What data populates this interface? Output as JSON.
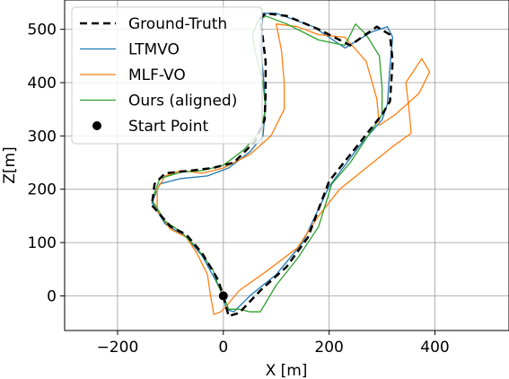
{
  "chart_data": {
    "type": "line",
    "xlabel": "X [m]",
    "ylabel": "Z[m]",
    "xlim": [
      -300,
      540
    ],
    "ylim": [
      -65,
      555
    ],
    "xticks": [
      -200,
      0,
      200,
      400
    ],
    "yticks": [
      0,
      100,
      200,
      300,
      400,
      500
    ],
    "xtick_labels": [
      "−200",
      "0",
      "200",
      "400"
    ],
    "ytick_labels": [
      "0",
      "100",
      "200",
      "300",
      "400",
      "500"
    ],
    "grid": true,
    "legend_position": "top-left",
    "series": [
      {
        "name": "Ground-Truth",
        "color": "#000000",
        "dashed": true,
        "points": [
          [
            0,
            0
          ],
          [
            10,
            -38
          ],
          [
            30,
            -32
          ],
          [
            70,
            10
          ],
          [
            120,
            55
          ],
          [
            160,
            110
          ],
          [
            200,
            215
          ],
          [
            260,
            290
          ],
          [
            300,
            340
          ],
          [
            315,
            365
          ],
          [
            320,
            440
          ],
          [
            315,
            490
          ],
          [
            290,
            505
          ],
          [
            240,
            470
          ],
          [
            180,
            500
          ],
          [
            120,
            525
          ],
          [
            80,
            530
          ],
          [
            70,
            520
          ],
          [
            75,
            480
          ],
          [
            80,
            440
          ],
          [
            80,
            380
          ],
          [
            78,
            330
          ],
          [
            60,
            290
          ],
          [
            20,
            250
          ],
          [
            -20,
            240
          ],
          [
            -60,
            235
          ],
          [
            -110,
            230
          ],
          [
            -130,
            210
          ],
          [
            -135,
            170
          ],
          [
            -100,
            130
          ],
          [
            -70,
            115
          ],
          [
            -40,
            80
          ],
          [
            -10,
            30
          ],
          [
            0,
            0
          ]
        ]
      },
      {
        "name": "LTMVO",
        "color": "#1f77b4",
        "dashed": false,
        "points": [
          [
            0,
            0
          ],
          [
            5,
            -25
          ],
          [
            20,
            -30
          ],
          [
            50,
            0
          ],
          [
            100,
            40
          ],
          [
            150,
            100
          ],
          [
            200,
            205
          ],
          [
            260,
            285
          ],
          [
            300,
            330
          ],
          [
            310,
            360
          ],
          [
            315,
            430
          ],
          [
            320,
            485
          ],
          [
            310,
            505
          ],
          [
            280,
            495
          ],
          [
            230,
            465
          ],
          [
            170,
            505
          ],
          [
            100,
            530
          ],
          [
            75,
            530
          ],
          [
            70,
            470
          ],
          [
            75,
            420
          ],
          [
            80,
            360
          ],
          [
            75,
            300
          ],
          [
            50,
            270
          ],
          [
            10,
            240
          ],
          [
            -30,
            225
          ],
          [
            -80,
            220
          ],
          [
            -120,
            210
          ],
          [
            -135,
            175
          ],
          [
            -110,
            135
          ],
          [
            -70,
            110
          ],
          [
            -40,
            75
          ],
          [
            -15,
            30
          ],
          [
            0,
            0
          ]
        ]
      },
      {
        "name": "MLF-VO",
        "color": "#ff7f0e",
        "dashed": false,
        "points": [
          [
            -25,
            5
          ],
          [
            -18,
            -35
          ],
          [
            -5,
            -30
          ],
          [
            5,
            -20
          ],
          [
            30,
            10
          ],
          [
            80,
            45
          ],
          [
            140,
            90
          ],
          [
            180,
            150
          ],
          [
            220,
            200
          ],
          [
            270,
            240
          ],
          [
            320,
            280
          ],
          [
            355,
            305
          ],
          [
            350,
            360
          ],
          [
            345,
            400
          ],
          [
            375,
            445
          ],
          [
            390,
            420
          ],
          [
            370,
            380
          ],
          [
            325,
            340
          ],
          [
            295,
            320
          ],
          [
            290,
            370
          ],
          [
            270,
            440
          ],
          [
            230,
            485
          ],
          [
            180,
            490
          ],
          [
            140,
            505
          ],
          [
            100,
            510
          ],
          [
            110,
            460
          ],
          [
            115,
            400
          ],
          [
            115,
            350
          ],
          [
            90,
            300
          ],
          [
            50,
            265
          ],
          [
            0,
            240
          ],
          [
            -40,
            230
          ],
          [
            -80,
            235
          ],
          [
            -110,
            225
          ],
          [
            -125,
            200
          ],
          [
            -125,
            160
          ],
          [
            -100,
            125
          ],
          [
            -70,
            110
          ],
          [
            -50,
            80
          ],
          [
            -30,
            40
          ],
          [
            -25,
            5
          ]
        ]
      },
      {
        "name": "Ours (aligned)",
        "color": "#2ca02c",
        "dashed": false,
        "points": [
          [
            0,
            0
          ],
          [
            10,
            -25
          ],
          [
            30,
            -25
          ],
          [
            50,
            -30
          ],
          [
            70,
            -30
          ],
          [
            100,
            20
          ],
          [
            140,
            70
          ],
          [
            180,
            130
          ],
          [
            205,
            210
          ],
          [
            240,
            250
          ],
          [
            280,
            310
          ],
          [
            300,
            340
          ],
          [
            300,
            390
          ],
          [
            295,
            450
          ],
          [
            270,
            490
          ],
          [
            250,
            510
          ],
          [
            230,
            470
          ],
          [
            180,
            480
          ],
          [
            120,
            510
          ],
          [
            80,
            525
          ],
          [
            65,
            515
          ],
          [
            55,
            490
          ],
          [
            60,
            460
          ],
          [
            75,
            400
          ],
          [
            80,
            350
          ],
          [
            70,
            310
          ],
          [
            40,
            275
          ],
          [
            0,
            245
          ],
          [
            -40,
            235
          ],
          [
            -80,
            232
          ],
          [
            -120,
            220
          ],
          [
            -135,
            180
          ],
          [
            -110,
            140
          ],
          [
            -80,
            120
          ],
          [
            -50,
            90
          ],
          [
            -20,
            50
          ],
          [
            -10,
            20
          ],
          [
            0,
            0
          ]
        ]
      },
      {
        "name": "Start Point",
        "color": "#000000",
        "marker": true,
        "points": [
          [
            0,
            0
          ]
        ]
      }
    ]
  }
}
